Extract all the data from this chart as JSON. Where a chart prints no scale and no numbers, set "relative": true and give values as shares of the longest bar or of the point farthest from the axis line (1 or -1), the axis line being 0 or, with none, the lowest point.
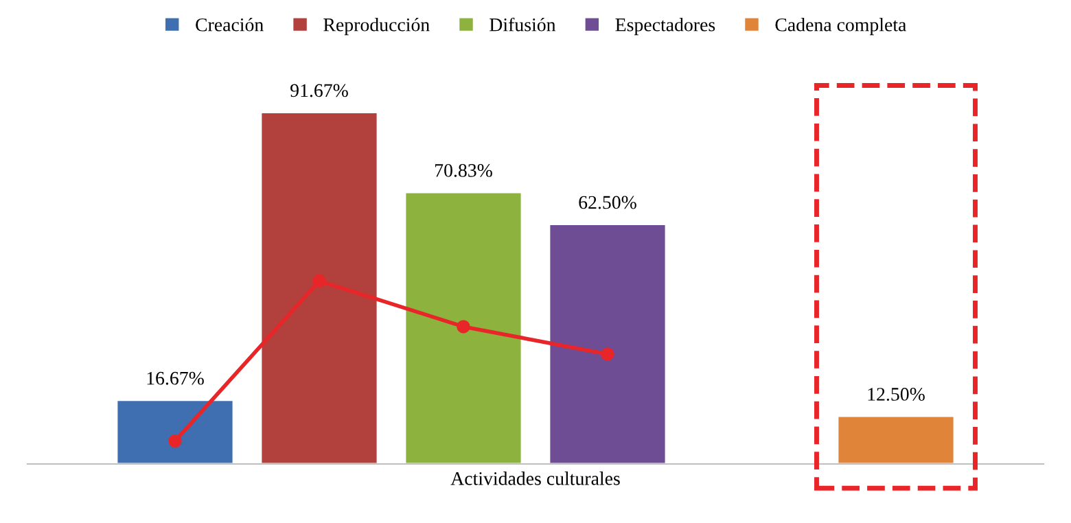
{
  "chart_data": [
    {
      "type": "bar",
      "xlabel": "Actividades culturales",
      "categories": [
        null
      ],
      "legend": "top",
      "series": [
        {
          "name": "Creación",
          "color": "#3f6fb0",
          "values": [
            16.67
          ],
          "value_labels": [
            "16.67%"
          ]
        },
        {
          "name": "Reproducción",
          "color": "#b2403c",
          "values": [
            91.67
          ],
          "value_labels": [
            "91.67%"
          ]
        },
        {
          "name": "Difusión",
          "color": "#8db33e",
          "values": [
            70.83
          ],
          "value_labels": [
            "70.83%"
          ]
        },
        {
          "name": "Espectadores",
          "color": "#6e4d94",
          "values": [
            62.5
          ],
          "value_labels": [
            "62.50%"
          ]
        },
        {
          "values": [
            null
          ]
        },
        {
          "name": "Cadena completa",
          "color": "#e0843a",
          "values": [
            12.5
          ],
          "value_labels": [
            "12.50%"
          ]
        }
      ]
    },
    {
      "type": "line",
      "relative": true,
      "categories": [
        null,
        null,
        null,
        null
      ],
      "marker": "circle",
      "line_style": "solid",
      "series": [
        {
          "color": "#e8262a",
          "values": [
            0.125,
            1,
            0.75,
            0.6
          ]
        }
      ]
    }
  ]
}
